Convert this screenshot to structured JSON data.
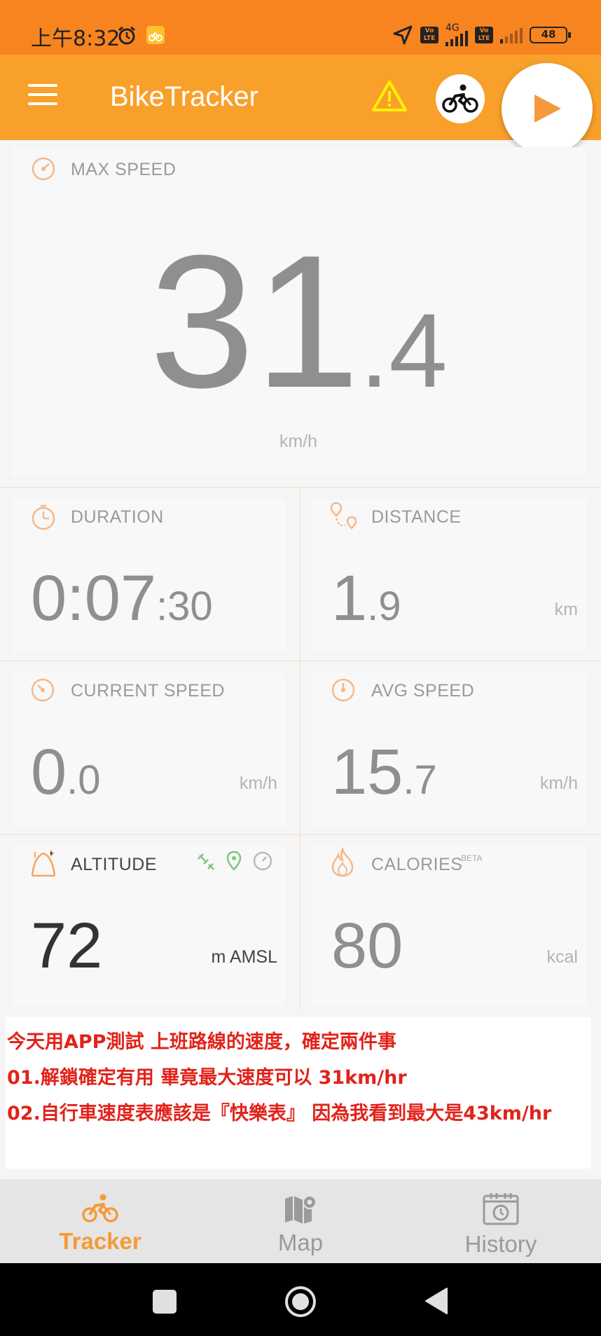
{
  "status_bar": {
    "time": "上午8:32",
    "network": "4G",
    "volte_1": "Vo LTE",
    "volte_2": "Vo LTE",
    "battery": "48"
  },
  "app_bar": {
    "title": "BikeTracker",
    "icons": [
      "menu-icon",
      "warning-icon",
      "bike-icon",
      "play-icon"
    ]
  },
  "max_speed": {
    "label": "MAX SPEED",
    "integer": "31",
    "decimal": ".4",
    "unit": "km/h"
  },
  "duration": {
    "label": "DURATION",
    "main": "0:07",
    "seconds": ":30"
  },
  "distance": {
    "label": "DISTANCE",
    "integer": "1",
    "decimal": ".9",
    "unit": "km"
  },
  "current_speed": {
    "label": "CURRENT SPEED",
    "integer": "0",
    "decimal": ".0",
    "unit": "km/h"
  },
  "avg_speed": {
    "label": "AVG SPEED",
    "integer": "15",
    "decimal": ".7",
    "unit": "km/h"
  },
  "altitude": {
    "label": "ALTITUDE",
    "value": "72",
    "unit": "m AMSL"
  },
  "calories": {
    "label": "CALORIES",
    "badge": "BETA",
    "value": "80",
    "unit": "kcal"
  },
  "note": {
    "lines": [
      "今天用APP測試 上班路線的速度，確定兩件事",
      "01.解鎖確定有用 畢竟最大速度可以 31km/hr",
      "02.自行車速度表應該是『快樂表』 因為我看到最大是43km/hr"
    ]
  },
  "bottom_nav": {
    "items": [
      {
        "label": "Tracker",
        "active": true
      },
      {
        "label": "Map",
        "active": false
      },
      {
        "label": "History",
        "active": false
      }
    ]
  },
  "colors": {
    "status_bar": "#f7841f",
    "app_bar": "#f9a02b",
    "accent": "#f59a3a",
    "note_text": "#e1231b"
  }
}
